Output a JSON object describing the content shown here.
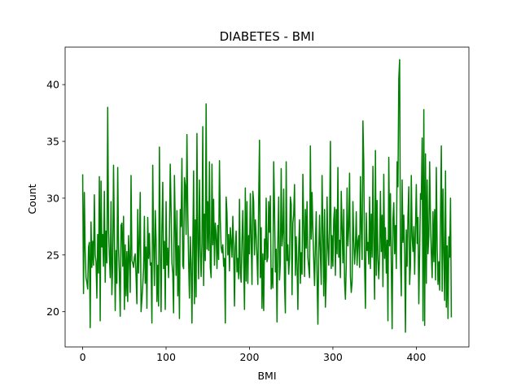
{
  "chart_data": {
    "type": "line",
    "title": "DIABETES - BMI",
    "xlabel": "BMI",
    "ylabel": "Count",
    "xlim": [
      -21.05,
      463.05
    ],
    "ylim": [
      16.9,
      43.3
    ],
    "xticks": [
      0,
      100,
      200,
      300,
      400
    ],
    "yticks": [
      20,
      25,
      30,
      35,
      40
    ],
    "grid": false,
    "legend": "none",
    "series": [
      {
        "color": "#008000",
        "x_start": 0,
        "x_step": 1,
        "values": [
          32.1,
          21.6,
          30.5,
          25.3,
          23.0,
          22.6,
          22.0,
          25.7,
          26.1,
          18.6,
          27.9,
          23.9,
          26.2,
          24.1,
          30.3,
          25.0,
          24.4,
          21.2,
          26.8,
          23.4,
          31.9,
          19.2,
          31.5,
          25.7,
          26.8,
          24.0,
          30.6,
          22.6,
          27.1,
          24.3,
          38.0,
          27.2,
          24.9,
          23.0,
          29.7,
          21.5,
          24.1,
          32.9,
          26.7,
          20.1,
          25.4,
          22.5,
          32.7,
          25.6,
          23.3,
          19.6,
          27.6,
          27.8,
          24.0,
          28.4,
          20.2,
          25.9,
          21.4,
          25.3,
          20.9,
          26.7,
          24.6,
          21.7,
          32.0,
          24.5,
          24.3,
          23.9,
          24.8,
          25.1,
          23.1,
          20.7,
          29.0,
          23.4,
          26.2,
          30.5,
          20.0,
          21.1,
          22.3,
          23.8,
          28.4,
          22.5,
          25.7,
          20.3,
          28.3,
          24.7,
          26.9,
          24.1,
          24.3,
          19.0,
          32.9,
          26.1,
          22.3,
          28.9,
          26.4,
          20.9,
          24.1,
          20.5,
          34.5,
          25.3,
          20.0,
          27.2,
          31.4,
          23.8,
          26.2,
          20.2,
          29.7,
          24.1,
          25.6,
          23.0,
          26.7,
          33.0,
          29.0,
          24.3,
          23.4,
          19.9,
          32.0,
          27.6,
          23.2,
          28.9,
          21.4,
          25.8,
          19.4,
          29.0,
          27.5,
          33.5,
          24.1,
          23.8,
          31.8,
          31.1,
          26.8,
          35.6,
          28.8,
          24.4,
          21.2,
          26.6,
          24.3,
          19.0,
          25.6,
          32.4,
          20.7,
          28.1,
          21.3,
          35.7,
          26.0,
          22.9,
          31.6,
          25.5,
          23.1,
          26.0,
          36.3,
          22.3,
          28.6,
          24.5,
          38.3,
          25.5,
          29.7,
          25.4,
          33.2,
          23.9,
          23.0,
          33.0,
          25.9,
          29.9,
          24.1,
          27.8,
          26.8,
          23.8,
          27.6,
          24.6,
          33.3,
          28.0,
          25.7,
          25.2,
          25.9,
          24.0,
          24.7,
          19.0,
          30.1,
          28.7,
          25.0,
          26.8,
          23.6,
          27.4,
          26.2,
          24.8,
          28.4,
          25.7,
          20.5,
          25.7,
          27.1,
          23.5,
          24.7,
          22.9,
          29.9,
          23.4,
          22.6,
          26.2,
          28.9,
          24.6,
          20.2,
          30.9,
          22.7,
          29.7,
          22.5,
          26.7,
          25.1,
          30.4,
          26.5,
          22.4,
          30.6,
          29.7,
          25.0,
          28.1,
          26.7,
          24.7,
          22.4,
          29.8,
          35.1,
          23.0,
          27.4,
          20.3,
          25.1,
          20.1,
          26.4,
          24.6,
          30.0,
          24.4,
          24.8,
          29.7,
          27.0,
          30.2,
          22.0,
          23.8,
          22.1,
          33.2,
          29.2,
          23.5,
          25.5,
          19.1,
          26.3,
          30.1,
          22.8,
          24.3,
          32.6,
          25.8,
          27.0,
          30.8,
          22.5,
          19.9,
          33.2,
          24.5,
          25.9,
          23.3,
          24.7,
          30.1,
          29.5,
          21.5,
          27.8,
          28.6,
          31.2,
          23.2,
          26.6,
          24.4,
          20.2,
          25.6,
          28.1,
          22.5,
          25.2,
          23.3,
          32.1,
          27.7,
          23.1,
          29.0,
          25.6,
          29.7,
          24.8,
          23.9,
          23.0,
          34.6,
          26.4,
          30.5,
          27.1,
          24.6,
          22.3,
          25.9,
          28.8,
          23.1,
          18.9,
          25.2,
          28.5,
          25.0,
          22.4,
          32.0,
          27.2,
          21.4,
          29.0,
          20.4,
          23.0,
          30.1,
          25.7,
          24.1,
          27.6,
          35.0,
          23.8,
          26.7,
          24.0,
          28.1,
          29.2,
          23.2,
          29.0,
          25.1,
          32.7,
          24.8,
          26.3,
          23.0,
          30.6,
          27.5,
          24.3,
          29.0,
          22.6,
          21.1,
          24.1,
          30.9,
          25.8,
          27.5,
          32.2,
          23.1,
          21.7,
          22.6,
          29.7,
          26.3,
          24.2,
          25.6,
          28.8,
          24.1,
          26.2,
          26.7,
          23.9,
          31.9,
          27.2,
          24.6,
          36.8,
          33.2,
          24.1,
          20.3,
          28.7,
          25.4,
          26.1,
          24.2,
          30.1,
          23.8,
          28.6,
          24.8,
          32.8,
          25.9,
          21.1,
          34.2,
          23.2,
          29.8,
          24.6,
          22.9,
          25.1,
          30.6,
          25.3,
          28.5,
          22.2,
          32.1,
          24.7,
          27.4,
          23.4,
          26.3,
          19.2,
          33.6,
          25.8,
          30.4,
          24.0,
          18.5,
          28.1,
          29.6,
          25.1,
          27.6,
          23.8,
          33.2,
          31.0,
          40.5,
          42.2,
          24.9,
          21.4,
          31.6,
          26.1,
          28.5,
          25.0,
          18.2,
          27.2,
          24.0,
          28.4,
          31.0,
          22.4,
          24.1,
          32.0,
          26.6,
          25.3,
          27.5,
          23.3,
          27.3,
          31.2,
          26.0,
          28.3,
          20.7,
          25.2,
          30.4,
          29.9,
          35.3,
          19.2,
          37.8,
          18.8,
          33.9,
          22.5,
          31.6,
          25.1,
          26.7,
          33.2,
          28.0,
          25.1,
          23.0,
          28.8,
          24.4,
          29.0,
          22.8,
          32.7,
          25.7,
          22.4,
          24.4,
          21.9,
          28.3,
          34.6,
          21.8,
          30.8,
          25.1,
          21.0,
          32.4,
          20.4,
          25.8,
          19.4,
          26.6,
          24.8,
          30.0,
          19.5
        ]
      }
    ]
  }
}
